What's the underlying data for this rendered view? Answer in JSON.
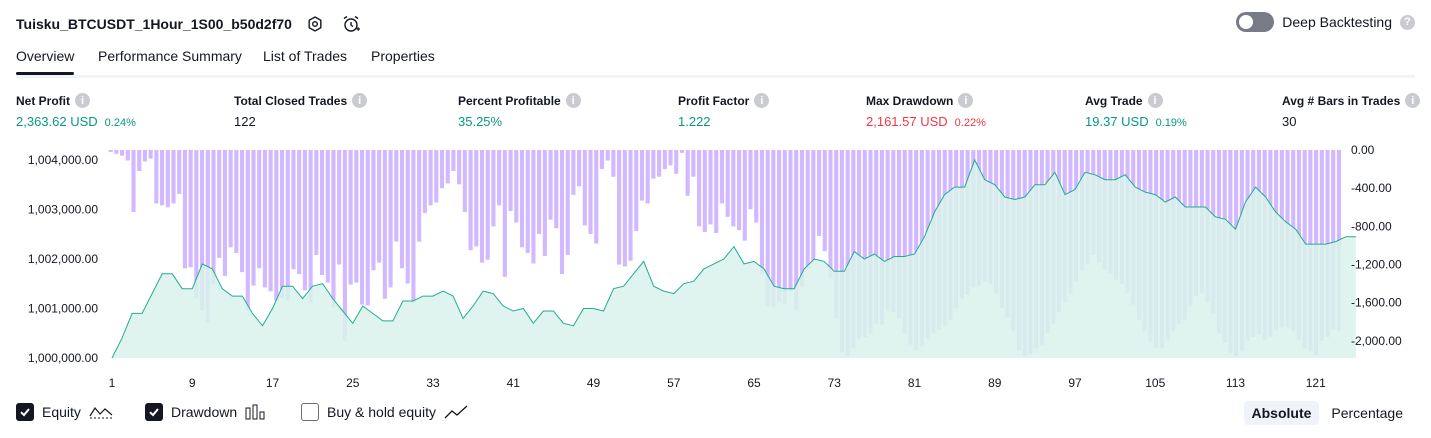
{
  "header": {
    "title": "Tuisku_BTCUSDT_1Hour_1S00_b50d2f70",
    "deep_backtesting_label": "Deep Backtesting"
  },
  "tabs": [
    {
      "label": "Overview"
    },
    {
      "label": "Performance Summary"
    },
    {
      "label": "List of Trades"
    },
    {
      "label": "Properties"
    }
  ],
  "metrics": [
    {
      "label": "Net Profit",
      "value": "2,363.62 USD",
      "pct": "0.24%",
      "color": "green"
    },
    {
      "label": "Total Closed Trades",
      "value": "122",
      "pct": "",
      "color": "dark"
    },
    {
      "label": "Percent Profitable",
      "value": "35.25%",
      "pct": "",
      "color": "green"
    },
    {
      "label": "Profit Factor",
      "value": "1.222",
      "pct": "",
      "color": "green"
    },
    {
      "label": "Max Drawdown",
      "value": "2,161.57 USD",
      "pct": "0.22%",
      "color": "red"
    },
    {
      "label": "Avg Trade",
      "value": "19.37 USD",
      "pct": "0.19%",
      "color": "green"
    },
    {
      "label": "Avg # Bars in Trades",
      "value": "30",
      "pct": "",
      "color": "dark"
    }
  ],
  "legend": {
    "equity": "Equity",
    "drawdown": "Drawdown",
    "buy_hold": "Buy & hold equity"
  },
  "modes": {
    "absolute": "Absolute",
    "percentage": "Percentage"
  },
  "colors": {
    "equity_line": "#22ab94",
    "equity_fill": "#d9f2eb",
    "drawdown": "#b388ff"
  },
  "chart_data": {
    "type": "area",
    "x_ticks": [
      "1",
      "9",
      "17",
      "25",
      "33",
      "41",
      "49",
      "57",
      "65",
      "73",
      "81",
      "89",
      "97",
      "105",
      "113",
      "121"
    ],
    "y_left_ticks": [
      "1,000,000.00",
      "1,001,000.00",
      "1,002,000.00",
      "1,003,000.00",
      "1,004,000.00"
    ],
    "y_right_ticks": [
      "0.00",
      "-400.00",
      "-800.00",
      "-1,200.00",
      "-1,600.00",
      "-2,000.00"
    ],
    "y_left_range": [
      1000000,
      1004200
    ],
    "y_right_range": [
      -2180,
      0
    ],
    "equity_keypoints": [
      [
        1,
        1000000
      ],
      [
        2,
        1000400
      ],
      [
        3,
        1000900
      ],
      [
        4,
        1000900
      ],
      [
        5,
        1001300
      ],
      [
        6,
        1001700
      ],
      [
        7,
        1001700
      ],
      [
        8,
        1001400
      ],
      [
        9,
        1001400
      ],
      [
        10,
        1001900
      ],
      [
        11,
        1001800
      ],
      [
        12,
        1001400
      ],
      [
        13,
        1001250
      ],
      [
        14,
        1001250
      ],
      [
        15,
        1000900
      ],
      [
        16,
        1000650
      ],
      [
        17,
        1001000
      ],
      [
        18,
        1001450
      ],
      [
        19,
        1001450
      ],
      [
        20,
        1001200
      ],
      [
        21,
        1001450
      ],
      [
        22,
        1001500
      ],
      [
        23,
        1001200
      ],
      [
        24,
        1000950
      ],
      [
        25,
        1000700
      ],
      [
        26,
        1001050
      ],
      [
        27,
        1000900
      ],
      [
        28,
        1000750
      ],
      [
        29,
        1000750
      ],
      [
        30,
        1001150
      ],
      [
        31,
        1001150
      ],
      [
        32,
        1001250
      ],
      [
        33,
        1001250
      ],
      [
        34,
        1001350
      ],
      [
        35,
        1001250
      ],
      [
        36,
        1000800
      ],
      [
        37,
        1001050
      ],
      [
        38,
        1001350
      ],
      [
        39,
        1001300
      ],
      [
        40,
        1001050
      ],
      [
        41,
        1000950
      ],
      [
        42,
        1001000
      ],
      [
        43,
        1000700
      ],
      [
        44,
        1000950
      ],
      [
        45,
        1000950
      ],
      [
        46,
        1000700
      ],
      [
        47,
        1000650
      ],
      [
        48,
        1001000
      ],
      [
        49,
        1001000
      ],
      [
        50,
        1000950
      ],
      [
        51,
        1001400
      ],
      [
        52,
        1001450
      ],
      [
        53,
        1001700
      ],
      [
        54,
        1001950
      ],
      [
        55,
        1001450
      ],
      [
        56,
        1001350
      ],
      [
        57,
        1001300
      ],
      [
        58,
        1001500
      ],
      [
        59,
        1001550
      ],
      [
        60,
        1001800
      ],
      [
        61,
        1001900
      ],
      [
        62,
        1002000
      ],
      [
        63,
        1002250
      ],
      [
        64,
        1001900
      ],
      [
        65,
        1001950
      ],
      [
        66,
        1001800
      ],
      [
        67,
        1001450
      ],
      [
        68,
        1001400
      ],
      [
        69,
        1001400
      ],
      [
        70,
        1001800
      ],
      [
        71,
        1002000
      ],
      [
        72,
        1001950
      ],
      [
        73,
        1001750
      ],
      [
        74,
        1001750
      ],
      [
        75,
        1002150
      ],
      [
        76,
        1002000
      ],
      [
        77,
        1002100
      ],
      [
        78,
        1001950
      ],
      [
        79,
        1002050
      ],
      [
        80,
        1002050
      ],
      [
        81,
        1002100
      ],
      [
        82,
        1002450
      ],
      [
        83,
        1002950
      ],
      [
        84,
        1003300
      ],
      [
        85,
        1003450
      ],
      [
        86,
        1003450
      ],
      [
        87,
        1004000
      ],
      [
        88,
        1003600
      ],
      [
        89,
        1003500
      ],
      [
        90,
        1003250
      ],
      [
        91,
        1003200
      ],
      [
        92,
        1003250
      ],
      [
        93,
        1003500
      ],
      [
        94,
        1003500
      ],
      [
        95,
        1003750
      ],
      [
        96,
        1003300
      ],
      [
        97,
        1003400
      ],
      [
        98,
        1003750
      ],
      [
        99,
        1003700
      ],
      [
        100,
        1003600
      ],
      [
        101,
        1003600
      ],
      [
        102,
        1003700
      ],
      [
        103,
        1003450
      ],
      [
        104,
        1003350
      ],
      [
        105,
        1003300
      ],
      [
        106,
        1003150
      ],
      [
        107,
        1003250
      ],
      [
        108,
        1003050
      ],
      [
        109,
        1003050
      ],
      [
        110,
        1003050
      ],
      [
        111,
        1002850
      ],
      [
        112,
        1002800
      ],
      [
        113,
        1002600
      ],
      [
        114,
        1003150
      ],
      [
        115,
        1003450
      ],
      [
        116,
        1003250
      ],
      [
        117,
        1002950
      ],
      [
        118,
        1002750
      ],
      [
        119,
        1002600
      ],
      [
        120,
        1002300
      ],
      [
        121,
        1002300
      ],
      [
        122,
        1002300
      ],
      [
        123,
        1002350
      ],
      [
        124,
        1002450
      ],
      [
        125,
        1002450
      ]
    ],
    "drawdown_keypoints": [
      [
        1,
        -20
      ],
      [
        2,
        -40
      ],
      [
        3,
        -60
      ],
      [
        4,
        -110
      ],
      [
        5,
        -650
      ],
      [
        6,
        -220
      ],
      [
        7,
        -120
      ],
      [
        8,
        -90
      ],
      [
        9,
        -560
      ],
      [
        10,
        -580
      ],
      [
        11,
        -600
      ],
      [
        12,
        -560
      ],
      [
        13,
        -460
      ],
      [
        14,
        -1240
      ],
      [
        15,
        -1230
      ],
      [
        16,
        -1560
      ],
      [
        17,
        -1680
      ],
      [
        18,
        -1810
      ],
      [
        19,
        -1400
      ],
      [
        20,
        -1130
      ],
      [
        21,
        -1320
      ],
      [
        22,
        -1020
      ],
      [
        23,
        -1080
      ],
      [
        24,
        -1280
      ],
      [
        25,
        -1680
      ],
      [
        26,
        -1420
      ],
      [
        27,
        -1240
      ],
      [
        28,
        -1440
      ],
      [
        29,
        -1480
      ],
      [
        30,
        -1580
      ],
      [
        31,
        -1550
      ],
      [
        32,
        -1580
      ],
      [
        33,
        -1250
      ],
      [
        34,
        -1300
      ],
      [
        35,
        -1470
      ],
      [
        36,
        -1600
      ],
      [
        37,
        -1100
      ],
      [
        38,
        -1310
      ],
      [
        39,
        -1390
      ],
      [
        40,
        -1650
      ],
      [
        41,
        -1200
      ],
      [
        42,
        -2000
      ],
      [
        43,
        -1410
      ],
      [
        44,
        -1390
      ],
      [
        45,
        -1620
      ],
      [
        46,
        -1630
      ],
      [
        47,
        -1260
      ],
      [
        48,
        -1180
      ],
      [
        49,
        -1560
      ],
      [
        50,
        -1440
      ],
      [
        51,
        -960
      ],
      [
        52,
        -1240
      ],
      [
        53,
        -1400
      ],
      [
        54,
        -1600
      ],
      [
        55,
        -960
      ],
      [
        56,
        -660
      ],
      [
        57,
        -580
      ],
      [
        58,
        -550
      ],
      [
        59,
        -400
      ],
      [
        60,
        -350
      ],
      [
        61,
        -220
      ],
      [
        62,
        -360
      ],
      [
        63,
        -650
      ],
      [
        64,
        -1050
      ],
      [
        65,
        -1010
      ],
      [
        66,
        -1180
      ],
      [
        67,
        -1150
      ],
      [
        68,
        -800
      ],
      [
        69,
        -580
      ],
      [
        70,
        -1330
      ],
      [
        71,
        -640
      ],
      [
        72,
        -760
      ],
      [
        73,
        -1020
      ],
      [
        74,
        -1080
      ],
      [
        75,
        -1190
      ],
      [
        76,
        -880
      ],
      [
        77,
        -1110
      ],
      [
        78,
        -730
      ],
      [
        79,
        -820
      ],
      [
        80,
        -1300
      ],
      [
        81,
        -1100
      ],
      [
        82,
        -470
      ],
      [
        83,
        -380
      ],
      [
        84,
        -790
      ],
      [
        85,
        -880
      ],
      [
        86,
        -980
      ],
      [
        87,
        -200
      ],
      [
        88,
        -110
      ],
      [
        89,
        -280
      ],
      [
        90,
        -1200
      ],
      [
        91,
        -1220
      ],
      [
        92,
        -1160
      ],
      [
        93,
        -850
      ],
      [
        94,
        -530
      ],
      [
        95,
        -560
      ],
      [
        96,
        -300
      ],
      [
        97,
        -280
      ],
      [
        98,
        -200
      ],
      [
        99,
        -160
      ],
      [
        100,
        -250
      ],
      [
        101,
        -30
      ],
      [
        102,
        -480
      ],
      [
        103,
        -280
      ],
      [
        104,
        -800
      ],
      [
        105,
        -860
      ],
      [
        106,
        -780
      ],
      [
        107,
        -870
      ],
      [
        108,
        -560
      ],
      [
        109,
        -700
      ],
      [
        110,
        -800
      ],
      [
        111,
        -840
      ],
      [
        112,
        -950
      ],
      [
        113,
        -620
      ],
      [
        114,
        -760
      ],
      [
        115,
        -1300
      ],
      [
        116,
        -1640
      ],
      [
        117,
        -1650
      ],
      [
        118,
        -1590
      ],
      [
        119,
        -1610
      ],
      [
        120,
        -1480
      ],
      [
        121,
        -1670
      ],
      [
        122,
        -1440
      ],
      [
        123,
        -1240
      ],
      [
        124,
        -1160
      ],
      [
        125,
        -900
      ],
      [
        126,
        -1060
      ],
      [
        127,
        -1340
      ],
      [
        128,
        -1760
      ],
      [
        129,
        -2120
      ],
      [
        130,
        -2160
      ],
      [
        131,
        -2080
      ],
      [
        132,
        -1980
      ],
      [
        133,
        -1960
      ],
      [
        134,
        -1920
      ],
      [
        135,
        -1820
      ],
      [
        136,
        -1830
      ],
      [
        137,
        -1690
      ],
      [
        138,
        -1700
      ],
      [
        139,
        -1760
      ],
      [
        140,
        -1930
      ],
      [
        141,
        -2040
      ],
      [
        142,
        -2100
      ],
      [
        143,
        -2060
      ],
      [
        144,
        -1980
      ],
      [
        145,
        -1920
      ],
      [
        146,
        -1880
      ],
      [
        147,
        -1850
      ],
      [
        148,
        -1780
      ],
      [
        149,
        -1660
      ],
      [
        150,
        -1560
      ],
      [
        151,
        -1520
      ],
      [
        152,
        -1440
      ],
      [
        153,
        -1420
      ],
      [
        154,
        -1380
      ],
      [
        155,
        -1400
      ],
      [
        156,
        -1500
      ],
      [
        157,
        -1660
      ],
      [
        158,
        -1760
      ],
      [
        159,
        -1900
      ],
      [
        160,
        -2100
      ],
      [
        161,
        -2160
      ],
      [
        162,
        -2140
      ],
      [
        163,
        -2080
      ],
      [
        164,
        -2040
      ],
      [
        165,
        -1920
      ],
      [
        166,
        -1820
      ],
      [
        167,
        -1700
      ],
      [
        168,
        -1600
      ],
      [
        169,
        -1500
      ],
      [
        170,
        -1380
      ],
      [
        171,
        -1260
      ],
      [
        172,
        -1200
      ],
      [
        173,
        -1100
      ],
      [
        174,
        -1180
      ],
      [
        175,
        -1260
      ],
      [
        176,
        -1300
      ],
      [
        177,
        -1360
      ],
      [
        178,
        -1400
      ],
      [
        179,
        -1500
      ],
      [
        180,
        -1620
      ],
      [
        181,
        -1780
      ],
      [
        182,
        -1900
      ],
      [
        183,
        -2010
      ],
      [
        184,
        -2080
      ],
      [
        185,
        -2080
      ],
      [
        186,
        -1990
      ],
      [
        187,
        -1900
      ],
      [
        188,
        -1820
      ],
      [
        189,
        -1780
      ],
      [
        190,
        -1640
      ],
      [
        191,
        -1530
      ],
      [
        192,
        -1500
      ],
      [
        193,
        -1600
      ],
      [
        194,
        -1720
      ],
      [
        195,
        -1920
      ],
      [
        196,
        -2020
      ],
      [
        197,
        -2130
      ],
      [
        198,
        -2160
      ],
      [
        199,
        -2110
      ],
      [
        200,
        -2000
      ],
      [
        201,
        -1960
      ],
      [
        202,
        -1930
      ],
      [
        203,
        -1990
      ],
      [
        204,
        -1960
      ],
      [
        205,
        -1890
      ],
      [
        206,
        -1860
      ],
      [
        207,
        -1860
      ],
      [
        208,
        -1900
      ],
      [
        209,
        -1990
      ],
      [
        210,
        -2080
      ],
      [
        211,
        -2110
      ],
      [
        212,
        -2150
      ],
      [
        213,
        -2000
      ],
      [
        214,
        -1960
      ],
      [
        215,
        -1880
      ],
      [
        216,
        -1900
      ]
    ]
  }
}
